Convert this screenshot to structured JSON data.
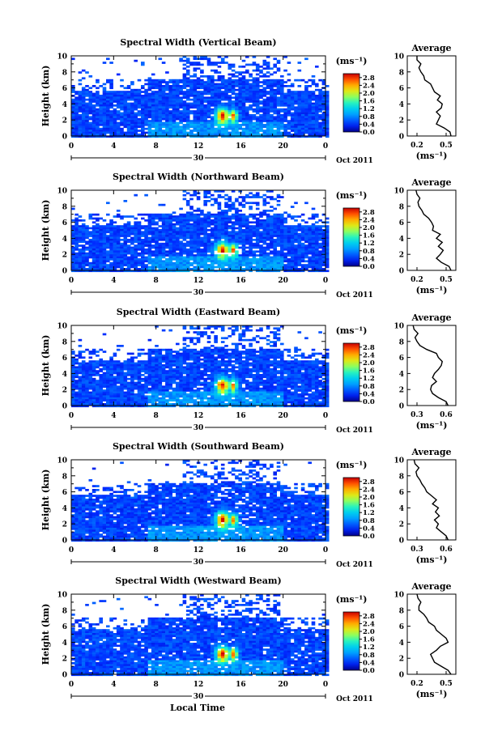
{
  "figure": {
    "xlabel": "Local Time",
    "date_label": "Oct 2011",
    "day_label": "30",
    "units_label": "(ms⁻¹)",
    "avg_title": "Average",
    "avg_xlabel": "(ms⁻¹)"
  },
  "chart_data": [
    {
      "type": "heatmap",
      "title": "Spectral Width (Vertical Beam)",
      "xlabel": "",
      "ylabel": "Height (km)",
      "xticks": [
        "0",
        "4",
        "8",
        "12",
        "16",
        "20",
        "0"
      ],
      "xlim": [
        0,
        24
      ],
      "yticks": [
        "0",
        "2",
        "4",
        "6",
        "8",
        "10"
      ],
      "ylim": [
        0,
        10
      ],
      "colorbar": {
        "ticks": [
          "0.0",
          "0.4",
          "0.8",
          "1.2",
          "1.6",
          "2.0",
          "2.4",
          "2.8"
        ],
        "range": [
          0,
          3.0
        ]
      },
      "average": {
        "title": "Average",
        "xlabel": "(ms⁻¹)",
        "xticks": [
          "0.2",
          "0.5"
        ],
        "xlim": [
          0.1,
          0.6
        ],
        "height": [
          0.0,
          0.5,
          1.0,
          1.5,
          2.0,
          2.5,
          3.0,
          3.5,
          4.0,
          4.5,
          5.0,
          5.5,
          6.0,
          6.5,
          7.0,
          7.5,
          8.0,
          8.5,
          9.0,
          9.5,
          10.0
        ],
        "width": [
          0.55,
          0.54,
          0.48,
          0.4,
          0.42,
          0.44,
          0.4,
          0.45,
          0.46,
          0.41,
          0.44,
          0.38,
          0.36,
          0.34,
          0.28,
          0.27,
          0.24,
          0.22,
          0.24,
          0.2,
          0.2
        ]
      }
    },
    {
      "type": "heatmap",
      "title": "Spectral Width (Northward Beam)",
      "xlabel": "",
      "ylabel": "Height (km)",
      "xticks": [
        "0",
        "4",
        "8",
        "12",
        "16",
        "20",
        "0"
      ],
      "xlim": [
        0,
        24
      ],
      "yticks": [
        "0",
        "2",
        "4",
        "6",
        "8",
        "10"
      ],
      "ylim": [
        0,
        10
      ],
      "colorbar": {
        "ticks": [
          "0.0",
          "0.4",
          "0.8",
          "1.2",
          "1.6",
          "2.0",
          "2.4",
          "2.8"
        ],
        "range": [
          0,
          3.0
        ]
      },
      "average": {
        "title": "Average",
        "xlabel": "(ms⁻¹)",
        "xticks": [
          "0.2",
          "0.5"
        ],
        "xlim": [
          0.1,
          0.6
        ],
        "height": [
          0.0,
          0.5,
          1.0,
          1.5,
          2.0,
          2.5,
          3.0,
          3.5,
          4.0,
          4.5,
          5.0,
          5.5,
          6.0,
          6.5,
          7.0,
          7.5,
          8.0,
          8.5,
          9.0,
          9.5,
          10.0
        ],
        "width": [
          0.55,
          0.53,
          0.45,
          0.4,
          0.44,
          0.47,
          0.42,
          0.46,
          0.4,
          0.44,
          0.36,
          0.37,
          0.35,
          0.32,
          0.27,
          0.25,
          0.22,
          0.21,
          0.23,
          0.2,
          0.19
        ]
      }
    },
    {
      "type": "heatmap",
      "title": "Spectral Width (Eastward Beam)",
      "xlabel": "",
      "ylabel": "Height (km)",
      "xticks": [
        "0",
        "4",
        "8",
        "12",
        "16",
        "20",
        "0"
      ],
      "xlim": [
        0,
        24
      ],
      "yticks": [
        "0",
        "2",
        "4",
        "6",
        "8",
        "10"
      ],
      "ylim": [
        0,
        10
      ],
      "colorbar": {
        "ticks": [
          "0.0",
          "0.4",
          "0.8",
          "1.2",
          "1.6",
          "2.0",
          "2.4",
          "2.8"
        ],
        "range": [
          0,
          3.0
        ]
      },
      "average": {
        "title": "Average",
        "xlabel": "(ms⁻¹)",
        "xticks": [
          "0.3",
          "0.6"
        ],
        "xlim": [
          0.2,
          0.7
        ],
        "height": [
          0.0,
          0.5,
          1.0,
          1.5,
          2.0,
          2.5,
          3.0,
          3.5,
          4.0,
          4.5,
          5.0,
          5.5,
          6.0,
          6.5,
          7.0,
          7.5,
          8.0,
          8.5,
          9.0,
          9.5,
          10.0
        ],
        "width": [
          0.62,
          0.6,
          0.52,
          0.46,
          0.44,
          0.45,
          0.5,
          0.46,
          0.48,
          0.52,
          0.55,
          0.56,
          0.52,
          0.5,
          0.4,
          0.33,
          0.3,
          0.28,
          0.31,
          0.27,
          0.26
        ]
      }
    },
    {
      "type": "heatmap",
      "title": "Spectral Width (Southward Beam)",
      "xlabel": "",
      "ylabel": "Height (km)",
      "xticks": [
        "0",
        "4",
        "8",
        "12",
        "16",
        "20",
        "0"
      ],
      "xlim": [
        0,
        24
      ],
      "yticks": [
        "0",
        "2",
        "4",
        "6",
        "8",
        "10"
      ],
      "ylim": [
        0,
        10
      ],
      "colorbar": {
        "ticks": [
          "0.0",
          "0.4",
          "0.8",
          "1.2",
          "1.6",
          "2.0",
          "2.4",
          "2.8"
        ],
        "range": [
          0,
          3.0
        ]
      },
      "average": {
        "title": "Average",
        "xlabel": "(ms⁻¹)",
        "xticks": [
          "0.3",
          "0.6"
        ],
        "xlim": [
          0.2,
          0.7
        ],
        "height": [
          0.0,
          0.5,
          1.0,
          1.5,
          2.0,
          2.5,
          3.0,
          3.5,
          4.0,
          4.5,
          5.0,
          5.5,
          6.0,
          6.5,
          7.0,
          7.5,
          8.0,
          8.5,
          9.0,
          9.5,
          10.0
        ],
        "width": [
          0.62,
          0.6,
          0.55,
          0.5,
          0.52,
          0.48,
          0.53,
          0.49,
          0.52,
          0.46,
          0.5,
          0.45,
          0.4,
          0.38,
          0.35,
          0.33,
          0.3,
          0.29,
          0.32,
          0.28,
          0.27
        ]
      }
    },
    {
      "type": "heatmap",
      "title": "Spectral Width (Westward Beam)",
      "xlabel": "Local Time",
      "ylabel": "Height (km)",
      "xticks": [
        "0",
        "4",
        "8",
        "12",
        "16",
        "20",
        "0"
      ],
      "xlim": [
        0,
        24
      ],
      "yticks": [
        "0",
        "2",
        "4",
        "6",
        "8",
        "10"
      ],
      "ylim": [
        0,
        10
      ],
      "colorbar": {
        "ticks": [
          "0.0",
          "0.4",
          "0.8",
          "1.2",
          "1.6",
          "2.0",
          "2.4",
          "2.8"
        ],
        "range": [
          0,
          3.0
        ]
      },
      "average": {
        "title": "Average",
        "xlabel": "(ms⁻¹)",
        "xticks": [
          "0.2",
          "0.5"
        ],
        "xlim": [
          0.1,
          0.6
        ],
        "height": [
          0.0,
          0.5,
          1.0,
          1.5,
          2.0,
          2.5,
          3.0,
          3.5,
          4.0,
          4.5,
          5.0,
          5.5,
          6.0,
          6.5,
          7.0,
          7.5,
          8.0,
          8.5,
          9.0,
          9.5,
          10.0
        ],
        "width": [
          0.55,
          0.52,
          0.45,
          0.38,
          0.36,
          0.34,
          0.4,
          0.44,
          0.52,
          0.5,
          0.45,
          0.4,
          0.38,
          0.32,
          0.3,
          0.27,
          0.22,
          0.22,
          0.24,
          0.21,
          0.2
        ]
      }
    }
  ]
}
